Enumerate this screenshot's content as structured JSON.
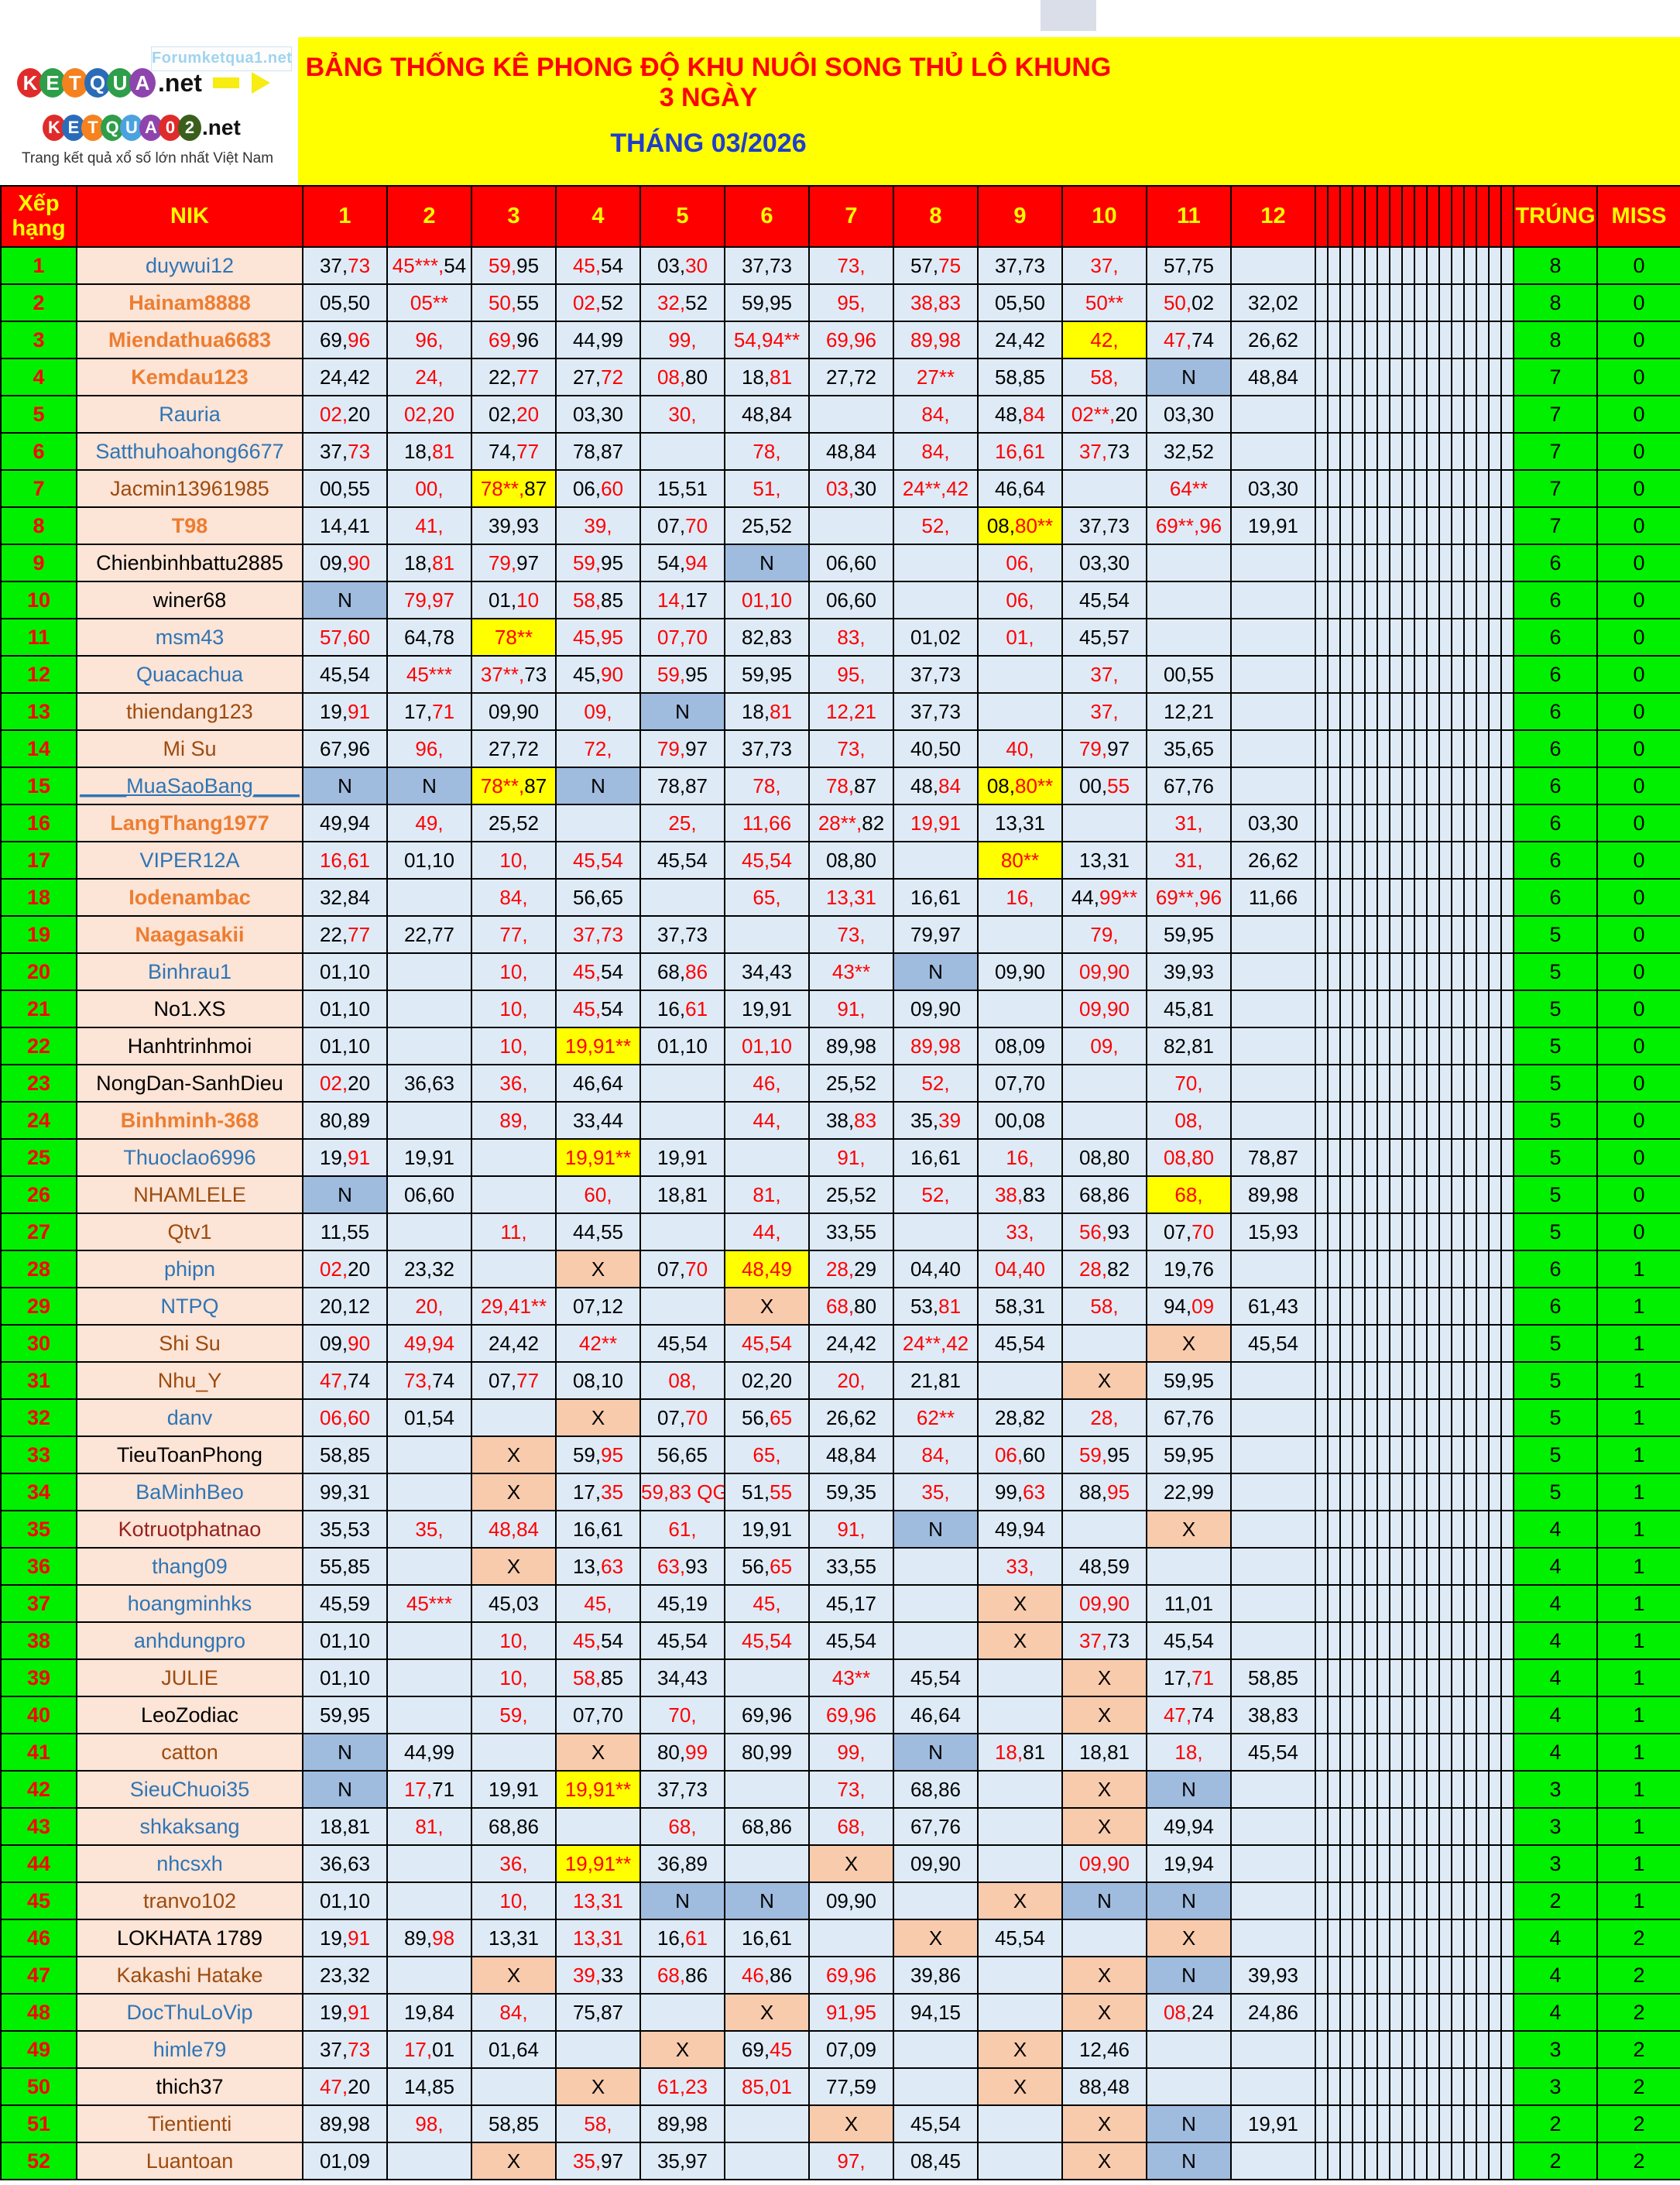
{
  "banner": {
    "title": "BẢNG THỐNG KÊ PHONG ĐỘ KHU NUÔI SONG THỦ LÔ KHUNG  3 NGÀY",
    "month": "THÁNG 03/2026"
  },
  "logo": {
    "watermark": "Forumketqua1.net",
    "site1_letters": [
      {
        "ch": "K",
        "color": "#e02b2b"
      },
      {
        "ch": "E",
        "color": "#2e9e49"
      },
      {
        "ch": "T",
        "color": "#f5821f"
      },
      {
        "ch": "Q",
        "color": "#2b6cb8"
      },
      {
        "ch": "U",
        "color": "#2e9e49"
      },
      {
        "ch": "A",
        "color": "#8e44ad"
      }
    ],
    "site1_suffix": ".net",
    "site2_letters": [
      {
        "ch": "K",
        "color": "#e02b2b"
      },
      {
        "ch": "E",
        "color": "#2b6cb8"
      },
      {
        "ch": "T",
        "color": "#f5821f"
      },
      {
        "ch": "Q",
        "color": "#2e9e49"
      },
      {
        "ch": "U",
        "color": "#4aa3df"
      },
      {
        "ch": "A",
        "color": "#8e44ad"
      },
      {
        "ch": "0",
        "color": "#e02b2b"
      },
      {
        "ch": "2",
        "color": "#3a5f1d"
      }
    ],
    "site2_suffix": ".net",
    "tagline": "Trang kết quả xổ số lớn nhất Việt Nam"
  },
  "header": {
    "rank_line1": "Xếp",
    "rank_line2": "hạng",
    "nik": "NIK",
    "cols": [
      "1",
      "2",
      "3",
      "4",
      "5",
      "6",
      "7",
      "8",
      "9",
      "10",
      "11",
      "12"
    ],
    "trung": "TRÚNG",
    "miss": "MISS"
  },
  "colors": {
    "header_bg": "#ff0000",
    "header_text": "#ffff00",
    "rank_green": "#00f000",
    "cell_blue": "#deebf7",
    "nik_peach": "#fce4d6",
    "highlight_yellow": "#ffff00",
    "n_blue": "#9fbcdf",
    "x_orange": "#f8cbad",
    "red": "#ff0000",
    "black": "#000000",
    "nik_blue": "#2e75b6",
    "nik_orange": "#ed7d31",
    "nik_brown": "#9c4b0f",
    "nik_darkred": "#962020"
  },
  "rows": [
    {
      "r": "1",
      "n": "duywui12",
      "nc": "blue",
      "c": [
        "37,73|kr",
        "45***,54|rk",
        "59,95|rk",
        "45,54|rk",
        "03,30|kr",
        "37,73|k",
        "73,|r",
        "57,75|kr",
        "37,73|k",
        "37,|r",
        "57,75|k",
        ""
      ],
      "t": "8",
      "m": "0"
    },
    {
      "r": "2",
      "n": "Hainam8888",
      "nc": "orange",
      "c": [
        "05,50|k",
        "05**|r",
        "50,55|rk",
        "02,52|rk",
        "32,52|rk",
        "59,95|k",
        "95,|r",
        "38,83|r",
        "05,50|k",
        "50**|r",
        "50,02|rk",
        "32,02|k"
      ],
      "t": "8",
      "m": "0"
    },
    {
      "r": "3",
      "n": "Miendathua6683",
      "nc": "orange",
      "c": [
        "69,96|kr",
        "96,|r",
        "69,96|rk",
        "44,99|k",
        "99,|r",
        "54,94**|r",
        "69,96|r",
        "89,98|r",
        "24,42|k",
        "42,|r|y",
        "47,74|rk",
        "26,62|k"
      ],
      "t": "8",
      "m": "0"
    },
    {
      "r": "4",
      "n": "Kemdau123",
      "nc": "orange",
      "c": [
        "24,42|k",
        "24,|r",
        "22,77|kr",
        "27,72|kr",
        "08,80|rk",
        "18,81|kr",
        "27,72|k",
        "27**|r",
        "58,85|k",
        "58,|r",
        "N|k|n",
        "48,84|k"
      ],
      "t": "7",
      "m": "0"
    },
    {
      "r": "5",
      "n": "Rauria",
      "nc": "blue",
      "c": [
        "02,20|rk",
        "02,20|r",
        "02,20|kr",
        "03,30|k",
        "30,|r",
        "48,84|k",
        "",
        "84,|r",
        "48,84|kr",
        "02**,20|rk",
        "03,30|k",
        ""
      ],
      "t": "7",
      "m": "0"
    },
    {
      "r": "6",
      "n": "Satthuhoahong6677",
      "nc": "blue",
      "c": [
        "37,73|kr",
        "18,81|kr",
        "74,77|kr",
        "78,87|k",
        "",
        "78,|r",
        "48,84|k",
        "84,|r",
        "16,61|r",
        "37,73|rk",
        "32,52|k",
        ""
      ],
      "t": "7",
      "m": "0"
    },
    {
      "r": "7",
      "n": "Jacmin13961985",
      "nc": "brown",
      "c": [
        "00,55|k",
        "00,|r",
        "78**,87|rk|y",
        "06,60|kr",
        "15,51|k",
        "51,|r",
        "03,30|rk",
        "24**,42|r",
        "46,64|k",
        "",
        "64**|r",
        "03,30|k"
      ],
      "t": "7",
      "m": "0"
    },
    {
      "r": "8",
      "n": "T98",
      "nc": "orange",
      "c": [
        "14,41|k",
        "41,|r",
        "39,93|k",
        "39,|r",
        "07,70|kr",
        "25,52|k",
        "",
        "52,|r",
        "08,80**|kr|y",
        "37,73|k",
        "69**,96|r",
        "19,91|k"
      ],
      "t": "7",
      "m": "0"
    },
    {
      "r": "9",
      "n": "Chienbinhbattu2885",
      "nc": "black",
      "c": [
        "09,90|kr",
        "18,81|kr",
        "79,97|rk",
        "59,95|rk",
        "54,94|kr",
        "N|k|n",
        "06,60|k",
        "",
        "06,|r",
        "03,30|k",
        "",
        ""
      ],
      "t": "6",
      "m": "0"
    },
    {
      "r": "10",
      "n": "winer68",
      "nc": "black",
      "c": [
        "N|k|n",
        "79,97|r",
        "01,10|kr",
        "58,85|rk",
        "14,17|rk",
        "01,10|r",
        "06,60|k",
        "",
        "06,|r",
        "45,54|k",
        "",
        ""
      ],
      "t": "6",
      "m": "0"
    },
    {
      "r": "11",
      "n": "msm43",
      "nc": "blue",
      "c": [
        "57,60|r",
        "64,78|k",
        "78**|r|y",
        "45,95|r",
        "07,70|r",
        "82,83|k",
        "83,|r",
        "01,02|k",
        "01,|r",
        "45,57|k",
        "",
        ""
      ],
      "t": "6",
      "m": "0"
    },
    {
      "r": "12",
      "n": "Quacachua",
      "nc": "blue",
      "c": [
        "45,54|k",
        "45***|r",
        "37**,73|rk",
        "45,90|kr",
        "59,95|rk",
        "59,95|k",
        "95,|r",
        "37,73|k",
        "",
        "37,|r",
        "00,55|k",
        ""
      ],
      "t": "6",
      "m": "0"
    },
    {
      "r": "13",
      "n": "thiendang123",
      "nc": "brown",
      "c": [
        "19,91|kr",
        "17,71|kr",
        "09,90|k",
        "09,|r",
        "N|k|n",
        "18,81|kr",
        "12,21|r",
        "37,73|k",
        "",
        "37,|r",
        "12,21|k",
        ""
      ],
      "t": "6",
      "m": "0"
    },
    {
      "r": "14",
      "n": "Mi Su",
      "nc": "brown",
      "c": [
        "67,96|k",
        "96,|r",
        "27,72|k",
        "72,|r",
        "79,97|rk",
        "37,73|k",
        "73,|r",
        "40,50|k",
        "40,|r",
        "79,97|rk",
        "35,65|k",
        ""
      ],
      "t": "6",
      "m": "0"
    },
    {
      "r": "15",
      "n": "____MuaSaoBang____",
      "nc": "blue",
      "u": true,
      "c": [
        "N|k|n",
        "N|k|n",
        "78**,87|rk|y",
        "N|k|n",
        "78,87|k",
        "78,|r",
        "78,87|rk",
        "48,84|kr",
        "08,80**|kr|y",
        "00,55|kr",
        "67,76|k",
        ""
      ],
      "t": "6",
      "m": "0"
    },
    {
      "r": "16",
      "n": "LangThang1977",
      "nc": "orange",
      "c": [
        "49,94|k",
        "49,|r",
        "25,52|k",
        "",
        "25,|r",
        "11,66|r",
        "28**,82|rk",
        "19,91|r",
        "13,31|k",
        "",
        "31,|r",
        "03,30|k"
      ],
      "t": "6",
      "m": "0"
    },
    {
      "r": "17",
      "n": "VIPER12A",
      "nc": "blue",
      "c": [
        "16,61|r",
        "01,10|k",
        "10,|r",
        "45,54|r",
        "45,54|k",
        "45,54|r",
        "08,80|k",
        "",
        "80**|r|y",
        "13,31|k",
        "31,|r",
        "26,62|k"
      ],
      "t": "6",
      "m": "0"
    },
    {
      "r": "18",
      "n": "Iodenambac",
      "nc": "orange",
      "c": [
        "32,84|k",
        "",
        "84,|r",
        "56,65|k",
        "",
        "65,|r",
        "13,31|r",
        "16,61|k",
        "16,|r",
        "44,99**|kr",
        "69**,96|r",
        "11,66|k"
      ],
      "t": "6",
      "m": "0"
    },
    {
      "r": "19",
      "n": "Naagasakii",
      "nc": "orange",
      "c": [
        "22,77|kr",
        "22,77|k",
        "77,|r",
        "37,73|r",
        "37,73|k",
        "",
        "73,|r",
        "79,97|k",
        "",
        "79,|r",
        "59,95|k",
        ""
      ],
      "t": "5",
      "m": "0"
    },
    {
      "r": "20",
      "n": "Binhrau1",
      "nc": "blue",
      "c": [
        "01,10|k",
        "",
        "10,|r",
        "45,54|rk",
        "68,86|kr",
        "34,43|k",
        "43**|r",
        "N|k|n",
        "09,90|k",
        "09,90|r",
        "39,93|k",
        ""
      ],
      "t": "5",
      "m": "0"
    },
    {
      "r": "21",
      "n": "No1.XS",
      "nc": "black",
      "c": [
        "01,10|k",
        "",
        "10,|r",
        "45,54|rk",
        "16,61|kr",
        "19,91|k",
        "91,|r",
        "09,90|k",
        "",
        "09,90|r",
        "45,81|k",
        ""
      ],
      "t": "5",
      "m": "0"
    },
    {
      "r": "22",
      "n": "Hanhtrinhmoi",
      "nc": "black",
      "c": [
        "01,10|k",
        "",
        "10,|r",
        "19,91**|r|y",
        "01,10|k",
        "01,10|r",
        "89,98|k",
        "89,98|r",
        "08,09|k",
        "09,|r",
        "82,81|k",
        ""
      ],
      "t": "5",
      "m": "0"
    },
    {
      "r": "23",
      "n": "NongDan-SanhDieu",
      "nc": "black",
      "c": [
        "02,20|rk",
        "36,63|k",
        "36,|r",
        "46,64|k",
        "",
        "46,|r",
        "25,52|k",
        "52,|r",
        "07,70|k",
        "",
        "70,|r",
        ""
      ],
      "t": "5",
      "m": "0"
    },
    {
      "r": "24",
      "n": "Binhminh-368",
      "nc": "orange",
      "c": [
        "80,89|k",
        "",
        "89,|r",
        "33,44|k",
        "",
        "44,|r",
        "38,83|kr",
        "35,39|kr",
        "00,08|k",
        "",
        "08,|r",
        ""
      ],
      "t": "5",
      "m": "0"
    },
    {
      "r": "25",
      "n": "Thuoclao6996",
      "nc": "blue",
      "c": [
        "19,91|kr",
        "19,91|k",
        "",
        "19,91**|r|y",
        "19,91|k",
        "",
        "91,|r",
        "16,61|k",
        "16,|r",
        "08,80|k",
        "08,80|r",
        "78,87|k"
      ],
      "t": "5",
      "m": "0"
    },
    {
      "r": "26",
      "n": "NHAMLELE",
      "nc": "brown",
      "c": [
        "N|k|n",
        "06,60|k",
        "",
        "60,|r",
        "18,81|k",
        "81,|r",
        "25,52|k",
        "52,|r",
        "38,83|rk",
        "68,86|k",
        "68,|r|y",
        "89,98|k"
      ],
      "t": "5",
      "m": "0"
    },
    {
      "r": "27",
      "n": "Qtv1",
      "nc": "brown",
      "c": [
        "11,55|k",
        "",
        "11,|r",
        "44,55|k",
        "",
        "44,|r",
        "33,55|k",
        "",
        "33,|r",
        "56,93|rk",
        "07,70|kr",
        "15,93|k"
      ],
      "t": "5",
      "m": "0"
    },
    {
      "r": "28",
      "n": "phipn",
      "nc": "blue",
      "c": [
        "02,20|rk",
        "23,32|k",
        "",
        "X|k|x",
        "07,70|kr",
        "48,49|r|y",
        "28,29|rk",
        "04,40|k",
        "04,40|r",
        "28,82|rk",
        "19,76|k",
        ""
      ],
      "t": "6",
      "m": "1"
    },
    {
      "r": "29",
      "n": "NTPQ",
      "nc": "blue",
      "c": [
        "20,12|k",
        "20,|r",
        "29,41**|r",
        "07,12|k",
        "",
        "X|k|x",
        "68,80|rk",
        "53,81|kr",
        "58,31|k",
        "58,|r",
        "94,09|kr",
        "61,43|k"
      ],
      "t": "6",
      "m": "1"
    },
    {
      "r": "30",
      "n": "Shi Su",
      "nc": "brown",
      "c": [
        "09,90|kr",
        "49,94|r",
        "24,42|k",
        "42**|r",
        "45,54|k",
        "45,54|r",
        "24,42|k",
        "24**,42|r",
        "45,54|k",
        "",
        "X|k|x",
        "45,54|k"
      ],
      "t": "5",
      "m": "1"
    },
    {
      "r": "31",
      "n": "Nhu_Y",
      "nc": "brown",
      "c": [
        "47,74|rk",
        "73,74|rk",
        "07,77|kr",
        "08,10|k",
        "08,|r",
        "02,20|k",
        "20,|r",
        "21,81|k",
        "",
        "X|k|x",
        "59,95|k",
        ""
      ],
      "t": "5",
      "m": "1"
    },
    {
      "r": "32",
      "n": "danv",
      "nc": "blue",
      "c": [
        "06,60|r",
        "01,54|k",
        "",
        "X|k|x",
        "07,70|kr",
        "56,65|kr",
        "26,62|k",
        "62**|r",
        "28,82|k",
        "28,|r",
        "67,76|k",
        ""
      ],
      "t": "5",
      "m": "1"
    },
    {
      "r": "33",
      "n": "TieuToanPhong",
      "nc": "black",
      "c": [
        "58,85|k",
        "",
        "X|k|x",
        "59,95|kr",
        "56,65|k",
        "65,|r",
        "48,84|k",
        "84,|r",
        "06,60|rk",
        "59,95|rk",
        "59,95|k",
        ""
      ],
      "t": "5",
      "m": "1"
    },
    {
      "r": "34",
      "n": "BaMinhBeo",
      "nc": "blue",
      "c": [
        "99,31|k",
        "",
        "X|k|x",
        "17,35|kr",
        "59,83 QG|r",
        "51,55|kr",
        "59,35|k",
        "35,|r",
        "99,63|kr",
        "88,95|kr",
        "22,99|k",
        ""
      ],
      "t": "5",
      "m": "1"
    },
    {
      "r": "35",
      "n": "Kotruotphatnao",
      "nc": "darkred",
      "c": [
        "35,53|k",
        "35,|r",
        "48,84|r",
        "16,61|k",
        "61,|r",
        "19,91|k",
        "91,|r",
        "N|k|n",
        "49,94|k",
        "",
        "X|k|x",
        ""
      ],
      "t": "4",
      "m": "1"
    },
    {
      "r": "36",
      "n": "thang09",
      "nc": "blue",
      "c": [
        "55,85|k",
        "",
        "X|k|x",
        "13,63|kr",
        "63,93|rk",
        "56,65|kr",
        "33,55|k",
        "",
        "33,|r",
        "48,59|k",
        "",
        ""
      ],
      "t": "4",
      "m": "1"
    },
    {
      "r": "37",
      "n": "hoangminhks",
      "nc": "blue",
      "c": [
        "45,59|k",
        "45***|r",
        "45,03|k",
        "45,|r",
        "45,19|k",
        "45,|r",
        "45,17|k",
        "",
        "X|k|x",
        "09,90|r",
        "11,01|k",
        ""
      ],
      "t": "4",
      "m": "1"
    },
    {
      "r": "38",
      "n": "anhdungpro",
      "nc": "blue",
      "c": [
        "01,10|k",
        "",
        "10,|r",
        "45,54|rk",
        "45,54|k",
        "45,54|r",
        "45,54|k",
        "",
        "X|k|x",
        "37,73|rk",
        "45,54|k",
        ""
      ],
      "t": "4",
      "m": "1"
    },
    {
      "r": "39",
      "n": "JULIE",
      "nc": "brown",
      "c": [
        "01,10|k",
        "",
        "10,|r",
        "58,85|rk",
        "34,43|k",
        "",
        "43**|r",
        "45,54|k",
        "",
        "X|k|x",
        "17,71|kr",
        "58,85|k"
      ],
      "t": "4",
      "m": "1"
    },
    {
      "r": "40",
      "n": "LeoZodiac",
      "nc": "black",
      "c": [
        "59,95|k",
        "",
        "59,|r",
        "07,70|k",
        "70,|r",
        "69,96|k",
        "69,96|r",
        "46,64|k",
        "",
        "X|k|x",
        "47,74|rk",
        "38,83|k"
      ],
      "t": "4",
      "m": "1"
    },
    {
      "r": "41",
      "n": "catton",
      "nc": "brown",
      "c": [
        "N|k|n",
        "44,99|k",
        "",
        "X|k|x",
        "80,99|kr",
        "80,99|k",
        "99,|r",
        "N|k|n",
        "18,81|rk",
        "18,81|k",
        "18,|r",
        "45,54|k"
      ],
      "t": "4",
      "m": "1"
    },
    {
      "r": "42",
      "n": "SieuChuoi35",
      "nc": "blue",
      "c": [
        "N|k|n",
        "17,71|rk",
        "19,91|k",
        "19,91**|r|y",
        "37,73|k",
        "",
        "73,|r",
        "68,86|k",
        "",
        "X|k|x",
        "N|k|n",
        ""
      ],
      "t": "3",
      "m": "1"
    },
    {
      "r": "43",
      "n": "shkaksang",
      "nc": "blue",
      "c": [
        "18,81|k",
        "81,|r",
        "68,86|k",
        "",
        "68,|r",
        "68,86|k",
        "68,|r",
        "67,76|k",
        "",
        "X|k|x",
        "49,94|k",
        ""
      ],
      "t": "3",
      "m": "1"
    },
    {
      "r": "44",
      "n": "nhcsxh",
      "nc": "blue",
      "c": [
        "36,63|k",
        "",
        "36,|r",
        "19,91**|r|y",
        "36,89|k",
        "",
        "X|k|x",
        "09,90|k",
        "",
        "09,90|r",
        "19,94|k",
        ""
      ],
      "t": "3",
      "m": "1"
    },
    {
      "r": "45",
      "n": "tranvo102",
      "nc": "brown",
      "c": [
        "01,10|k",
        "",
        "10,|r",
        "13,31|r",
        "N|k|n",
        "N|k|n",
        "09,90|k",
        "",
        "X|k|x",
        "N|k|n",
        "N|k|n",
        ""
      ],
      "t": "2",
      "m": "1"
    },
    {
      "r": "46",
      "n": "LOKHATA 1789",
      "nc": "black",
      "c": [
        "19,91|kr",
        "89,98|kr",
        "13,31|k",
        "13,31|r",
        "16,61|kr",
        "16,61|k",
        "",
        "X|k|x",
        "45,54|k",
        "",
        "X|k|x",
        ""
      ],
      "t": "4",
      "m": "2"
    },
    {
      "r": "47",
      "n": "Kakashi Hatake",
      "nc": "brown",
      "c": [
        "23,32|k",
        "",
        "X|k|x",
        "39,33|rk",
        "68,86|rk",
        "46,86|rk",
        "69,96|r",
        "39,86|k",
        "",
        "X|k|x",
        "N|k|n",
        "39,93|k"
      ],
      "t": "4",
      "m": "2"
    },
    {
      "r": "48",
      "n": "DocThuLoVip",
      "nc": "blue",
      "c": [
        "19,91|kr",
        "19,84|k",
        "84,|r",
        "75,87|k",
        "",
        "X|k|x",
        "91,95|r",
        "94,15|k",
        "",
        "X|k|x",
        "08,24|rk",
        "24,86|k"
      ],
      "t": "4",
      "m": "2"
    },
    {
      "r": "49",
      "n": "himle79",
      "nc": "blue",
      "c": [
        "37,73|kr",
        "17,01|rk",
        "01,64|k",
        "",
        "X|k|x",
        "69,45|kr",
        "07,09|k",
        "",
        "X|k|x",
        "12,46|k",
        "",
        ""
      ],
      "t": "3",
      "m": "2"
    },
    {
      "r": "50",
      "n": "thich37",
      "nc": "black",
      "c": [
        "47,20|rk",
        "14,85|k",
        "",
        "X|k|x",
        "61,23|r",
        "85,01|r",
        "77,59|k",
        "",
        "X|k|x",
        "88,48|k",
        "",
        ""
      ],
      "t": "3",
      "m": "2"
    },
    {
      "r": "51",
      "n": "Tientienti",
      "nc": "brown",
      "c": [
        "89,98|k",
        "98,|r",
        "58,85|k",
        "58,|r",
        "89,98|k",
        "",
        "X|k|x",
        "45,54|k",
        "",
        "X|k|x",
        "N|k|n",
        "19,91|k"
      ],
      "t": "2",
      "m": "2"
    },
    {
      "r": "52",
      "n": "Luantoan",
      "nc": "brown",
      "c": [
        "01,09|k",
        "",
        "X|k|x",
        "35,97|rk",
        "35,97|k",
        "",
        "97,|r",
        "08,45|k",
        "",
        "X|k|x",
        "N|k|n",
        ""
      ],
      "t": "2",
      "m": "2"
    }
  ]
}
